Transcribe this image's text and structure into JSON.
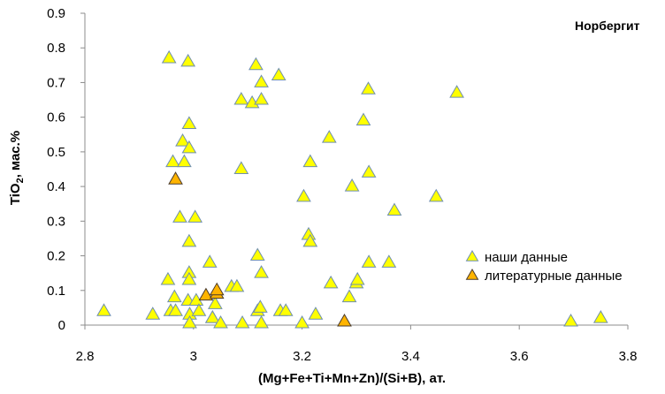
{
  "chart_data": {
    "type": "scatter",
    "title": "Норбергит",
    "xlabel": "(Mg+Fe+Ti+Mn+Zn)/(Si+B), ат.",
    "ylabel_parts": [
      "TiO",
      "2",
      ", мас.%"
    ],
    "xlim": [
      2.8,
      3.8
    ],
    "ylim": [
      0,
      0.9
    ],
    "x_ticks": [
      "2.8",
      "3",
      "3.2",
      "3.4",
      "3.6",
      "3.8"
    ],
    "y_ticks": [
      "0",
      "0.1",
      "0.2",
      "0.3",
      "0.4",
      "0.5",
      "0.6",
      "0.7",
      "0.8",
      "0.9"
    ],
    "grid": "none",
    "legend_placement": "right",
    "series": [
      {
        "name": "наши данные",
        "color": "#ffff00",
        "stroke": "#6f8fae",
        "marker": "triangle",
        "points": [
          [
            2.835,
            0.04
          ],
          [
            2.925,
            0.03
          ],
          [
            2.953,
            0.13
          ],
          [
            2.955,
            0.77
          ],
          [
            2.958,
            0.04
          ],
          [
            2.962,
            0.47
          ],
          [
            2.965,
            0.08
          ],
          [
            2.967,
            0.04
          ],
          [
            2.975,
            0.31
          ],
          [
            2.98,
            0.53
          ],
          [
            2.983,
            0.47
          ],
          [
            2.99,
            0.76
          ],
          [
            2.992,
            0.58
          ],
          [
            2.992,
            0.51
          ],
          [
            2.992,
            0.24
          ],
          [
            2.992,
            0.15
          ],
          [
            2.992,
            0.13
          ],
          [
            2.99,
            0.07
          ],
          [
            2.993,
            0.03
          ],
          [
            2.993,
            0.005
          ],
          [
            3.003,
            0.31
          ],
          [
            3.005,
            0.07
          ],
          [
            3.01,
            0.04
          ],
          [
            3.03,
            0.18
          ],
          [
            3.035,
            0.02
          ],
          [
            3.035,
            0.02
          ],
          [
            3.04,
            0.06
          ],
          [
            3.05,
            0.005
          ],
          [
            3.07,
            0.11
          ],
          [
            3.08,
            0.11
          ],
          [
            3.088,
            0.65
          ],
          [
            3.088,
            0.45
          ],
          [
            3.09,
            0.005
          ],
          [
            3.108,
            0.64
          ],
          [
            3.115,
            0.75
          ],
          [
            3.118,
            0.2
          ],
          [
            3.118,
            0.04
          ],
          [
            3.125,
            0.7
          ],
          [
            3.125,
            0.65
          ],
          [
            3.125,
            0.15
          ],
          [
            3.123,
            0.05
          ],
          [
            3.125,
            0.005
          ],
          [
            3.157,
            0.72
          ],
          [
            3.16,
            0.04
          ],
          [
            3.17,
            0.04
          ],
          [
            3.2,
            0.005
          ],
          [
            3.203,
            0.37
          ],
          [
            3.212,
            0.26
          ],
          [
            3.215,
            0.47
          ],
          [
            3.215,
            0.24
          ],
          [
            3.225,
            0.03
          ],
          [
            3.25,
            0.54
          ],
          [
            3.253,
            0.12
          ],
          [
            3.287,
            0.08
          ],
          [
            3.292,
            0.4
          ],
          [
            3.3,
            0.12
          ],
          [
            3.302,
            0.13
          ],
          [
            3.313,
            0.59
          ],
          [
            3.322,
            0.68
          ],
          [
            3.323,
            0.44
          ],
          [
            3.323,
            0.18
          ],
          [
            3.36,
            0.18
          ],
          [
            3.37,
            0.33
          ],
          [
            3.447,
            0.37
          ],
          [
            3.485,
            0.67
          ],
          [
            3.695,
            0.01
          ],
          [
            3.75,
            0.02
          ]
        ]
      },
      {
        "name": "литературные данные",
        "color": "#ffb400",
        "stroke": "#4a3a2a",
        "marker": "triangle",
        "points": [
          [
            2.967,
            0.42
          ],
          [
            3.023,
            0.085
          ],
          [
            3.043,
            0.09
          ],
          [
            3.043,
            0.1
          ],
          [
            3.278,
            0.01
          ]
        ]
      }
    ]
  }
}
